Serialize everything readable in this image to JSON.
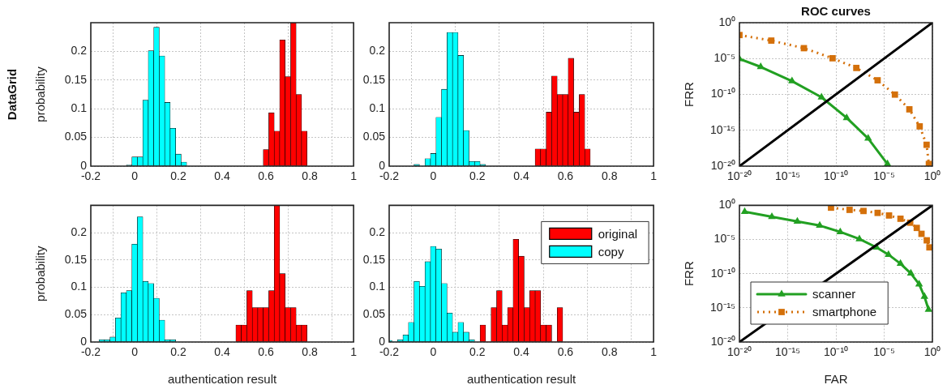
{
  "chart_data": [
    {
      "type": "histogram",
      "ylabel": "probability",
      "annotations": [
        "DataGrid"
      ],
      "xlim": [
        -0.2,
        1
      ],
      "xticks": [
        -0.2,
        0,
        0.2,
        0.4,
        0.6,
        0.8,
        1
      ],
      "ylim": [
        0,
        0.25
      ],
      "yticks": [
        0,
        0.05,
        0.1,
        0.15,
        0.2
      ],
      "grid": true,
      "bins": [
        -0.0375,
        -0.0125,
        0.0125,
        0.0375,
        0.0625,
        0.0875,
        0.1125,
        0.1375,
        0.1625,
        0.1875,
        0.2125,
        0.2375,
        0.2625,
        0.2875,
        0.3125,
        0.3375,
        0.3625,
        0.3875,
        0.4125,
        0.4375,
        0.4625,
        0.4875,
        0.5125,
        0.5375,
        0.5625,
        0.5875,
        0.6125,
        0.6375,
        0.6625,
        0.6875,
        0.7125,
        0.7375,
        0.7625,
        0.7875
      ],
      "series": [
        {
          "color": "#ff0000",
          "values": [
            null,
            null,
            null,
            null,
            null,
            null,
            null,
            null,
            null,
            null,
            null,
            null,
            null,
            null,
            null,
            null,
            null,
            null,
            null,
            null,
            null,
            null,
            null,
            null,
            null,
            0.029,
            0.093,
            0.061,
            0.22,
            0.156,
            0.25,
            0.125,
            0.061
          ]
        },
        {
          "color": "#00ffff",
          "values": [
            0.002,
            0.016,
            0.016,
            0.115,
            0.201,
            0.242,
            0.192,
            0.111,
            0.066,
            0.021,
            0.007,
            null,
            null,
            null,
            null,
            null,
            null,
            null,
            null,
            null,
            null,
            null,
            null,
            null,
            null,
            null,
            null,
            null,
            null,
            null,
            null,
            null,
            null
          ]
        }
      ]
    },
    {
      "type": "histogram",
      "xlim": [
        -0.2,
        1
      ],
      "xticks": [
        -0.2,
        0,
        0.2,
        0.4,
        0.6,
        0.8,
        1
      ],
      "ylim": [
        0,
        0.25
      ],
      "yticks": [
        0,
        0.05,
        0.1,
        0.15,
        0.2
      ],
      "grid": true,
      "bins": [
        -0.0875,
        -0.0625,
        -0.0375,
        -0.0125,
        0.0125,
        0.0375,
        0.0625,
        0.0875,
        0.1125,
        0.1375,
        0.1625,
        0.1875,
        0.2125,
        0.2375,
        0.2625,
        0.2875,
        0.3125,
        0.3375,
        0.3625,
        0.3875,
        0.4125,
        0.4375,
        0.4625,
        0.4875,
        0.5125,
        0.5375,
        0.5625,
        0.5875,
        0.6125,
        0.6375,
        0.6625,
        0.6875,
        0.7125
      ],
      "series": [
        {
          "color": "#ff0000",
          "values": [
            null,
            null,
            null,
            null,
            null,
            null,
            null,
            null,
            null,
            null,
            null,
            null,
            null,
            null,
            null,
            null,
            null,
            null,
            null,
            null,
            null,
            null,
            0.03,
            0.03,
            0.094,
            0.157,
            0.125,
            0.125,
            0.188,
            0.094,
            0.125,
            0.03
          ]
        },
        {
          "color": "#00ffff",
          "values": [
            0.003,
            0,
            0.013,
            0.022,
            0.085,
            0.134,
            0.233,
            0.233,
            0.193,
            0.062,
            0.008,
            0.008,
            0.003,
            null,
            null,
            null,
            null,
            null,
            null,
            null,
            null,
            null,
            null,
            null,
            null,
            null,
            null,
            null,
            null,
            null,
            null,
            null
          ]
        }
      ]
    },
    {
      "type": "line",
      "title": "ROC curves",
      "ylabel": "FRR",
      "log": "xy",
      "xlim": [
        1e-20,
        1
      ],
      "ylim": [
        1e-20,
        1
      ],
      "grid": true,
      "xticks": [
        {
          "value": 1e-20,
          "label": "10⁻²⁰"
        },
        {
          "value": 1e-15,
          "label": "10⁻¹⁵"
        },
        {
          "value": 1e-10,
          "label": "10⁻¹⁰"
        },
        {
          "value": 1e-05,
          "label": "10⁻⁵"
        },
        {
          "value": 1,
          "label": "10⁰"
        }
      ],
      "yticks": [
        {
          "value": 1e-20,
          "label": "10⁻²⁰"
        },
        {
          "value": 1e-15,
          "label": "10⁻¹⁵"
        },
        {
          "value": 1e-10,
          "label": "10⁻¹⁰"
        },
        {
          "value": 1e-05,
          "label": "10⁻⁵"
        },
        {
          "value": 1,
          "label": "10⁰"
        }
      ],
      "series": [
        {
          "color": "#000000",
          "marker": "none",
          "line_style": "solid",
          "x": [
            1e-20,
            1
          ],
          "values": [
            1e-20,
            1
          ]
        },
        {
          "color": "#22a022",
          "marker": "triangle",
          "line_style": "solid",
          "x": [
            1e-20,
            1.6e-18,
            2.8e-15,
            3.2e-12,
            1.3e-09,
            2.2e-07,
            2.2e-05
          ],
          "values": [
            8.9e-06,
            6.9e-07,
            7.1e-09,
            4e-11,
            5.4e-14,
            7.2e-17,
            2e-20
          ]
        },
        {
          "color": "#d4700a",
          "marker": "square",
          "line_style": "dotted",
          "x": [
            1e-20,
            2e-17,
            4.8e-14,
            4.5e-11,
            1.3e-08,
            2.1e-06,
            0.00013,
            0.0041,
            0.048,
            0.25,
            0.43
          ],
          "values": [
            0.019,
            0.0032,
            0.00028,
            1.1e-05,
            4.9e-07,
            9.3e-09,
            9.5e-11,
            8.3e-13,
            3.5e-15,
            9.5e-18,
            2e-20
          ]
        }
      ]
    },
    {
      "type": "histogram",
      "xlabel": "authentication result",
      "ylabel": "probability",
      "xlim": [
        -0.2,
        1
      ],
      "xticks": [
        -0.2,
        0,
        0.2,
        0.4,
        0.6,
        0.8,
        1
      ],
      "ylim": [
        0,
        0.25
      ],
      "yticks": [
        0,
        0.05,
        0.1,
        0.15,
        0.2
      ],
      "grid": true,
      "bins": [
        -0.1625,
        -0.1375,
        -0.1125,
        -0.0875,
        -0.0625,
        -0.0375,
        -0.0125,
        0.0125,
        0.0375,
        0.0625,
        0.0875,
        0.1125,
        0.1375,
        0.1625,
        0.1875,
        0.2125,
        0.2375,
        0.2625,
        0.2875,
        0.3125,
        0.3375,
        0.3625,
        0.3875,
        0.4125,
        0.4375,
        0.4625,
        0.4875,
        0.5125,
        0.5375,
        0.5625,
        0.5875,
        0.6125,
        0.6375,
        0.6625,
        0.6875,
        0.7125,
        0.7375,
        0.7625,
        0.7875
      ],
      "series": [
        {
          "color": "#ff0000",
          "values": [
            null,
            null,
            null,
            null,
            null,
            null,
            null,
            null,
            null,
            null,
            null,
            null,
            null,
            null,
            null,
            null,
            null,
            null,
            null,
            null,
            null,
            null,
            null,
            null,
            null,
            0.031,
            0.031,
            0.094,
            0.063,
            0.063,
            0.063,
            0.094,
            0.25,
            0.125,
            0.063,
            0.063,
            0.031,
            0.031
          ]
        },
        {
          "color": "#00ffff",
          "values": [
            0.004,
            0.004,
            0.009,
            0.044,
            0.09,
            0.094,
            0.179,
            0.229,
            0.111,
            0.107,
            0.08,
            0.04,
            0.004,
            0.004,
            null,
            null,
            null,
            null,
            null,
            null,
            null,
            null,
            null,
            null,
            null,
            null,
            null,
            null,
            null,
            null,
            null,
            null,
            null,
            null,
            null,
            null,
            null,
            null
          ]
        }
      ]
    },
    {
      "type": "histogram",
      "xlabel": "authentication result",
      "legend": "top right",
      "xlim": [
        -0.2,
        1
      ],
      "xticks": [
        -0.2,
        0,
        0.2,
        0.4,
        0.6,
        0.8,
        1
      ],
      "ylim": [
        0,
        0.25
      ],
      "yticks": [
        0,
        0.05,
        0.1,
        0.15,
        0.2
      ],
      "grid": true,
      "bins": [
        -0.2,
        -0.1875,
        -0.1625,
        -0.1375,
        -0.1125,
        -0.0875,
        -0.0625,
        -0.0375,
        -0.0125,
        0.0125,
        0.0375,
        0.0625,
        0.0875,
        0.1125,
        0.1375,
        0.1625,
        0.1875,
        0.2125,
        0.2375,
        0.2625,
        0.2875,
        0.3125,
        0.3375,
        0.3625,
        0.3875,
        0.4125,
        0.4375,
        0.4625,
        0.4875,
        0.5125,
        0.5375,
        0.5625,
        0.5875
      ],
      "series": [
        {
          "name": "original",
          "color": "#ff0000",
          "values": [
            null,
            null,
            null,
            null,
            null,
            null,
            null,
            null,
            null,
            null,
            null,
            null,
            null,
            null,
            null,
            null,
            null,
            0.031,
            0,
            0.063,
            0.094,
            0.031,
            0.063,
            0.188,
            0.157,
            0.063,
            0.094,
            0.094,
            0.031,
            0.031,
            0,
            0.063
          ]
        },
        {
          "name": "copy",
          "color": "#00ffff",
          "values": [
            0.003,
            0,
            0.004,
            0.013,
            0.036,
            0.111,
            0.102,
            0.147,
            0.175,
            0.17,
            0.107,
            0.053,
            0.018,
            0.036,
            0.018,
            0.004,
            null,
            null,
            null,
            null,
            null,
            null,
            null,
            null,
            null,
            null,
            null,
            null,
            null,
            null,
            null,
            null
          ]
        }
      ]
    },
    {
      "type": "line",
      "xlabel": "FAR",
      "ylabel": "FRR",
      "log": "xy",
      "legend": "bottom left",
      "xlim": [
        1e-20,
        1
      ],
      "ylim": [
        1e-20,
        1
      ],
      "grid": true,
      "xticks": [
        {
          "value": 1e-20,
          "label": "10⁻²⁰"
        },
        {
          "value": 1e-15,
          "label": "10⁻¹⁵"
        },
        {
          "value": 1e-10,
          "label": "10⁻¹⁰"
        },
        {
          "value": 1e-05,
          "label": "10⁻⁵"
        },
        {
          "value": 1,
          "label": "10⁰"
        }
      ],
      "yticks": [
        {
          "value": 1e-20,
          "label": "10⁻²⁰"
        },
        {
          "value": 1e-15,
          "label": "10⁻¹⁵"
        },
        {
          "value": 1e-10,
          "label": "10⁻¹⁰"
        },
        {
          "value": 1e-05,
          "label": "10⁻⁵"
        },
        {
          "value": 1,
          "label": "10⁰"
        }
      ],
      "series": [
        {
          "color": "#000000",
          "marker": "none",
          "line_style": "solid",
          "x": [
            1e-20,
            1
          ],
          "values": [
            1e-20,
            1
          ]
        },
        {
          "name": "scanner",
          "color": "#22a022",
          "marker": "triangle",
          "line_style": "solid",
          "x": [
            3.5e-20,
            2.3e-17,
            1e-14,
            2.1e-12,
            2.8e-10,
            2.7e-08,
            1.6e-06,
            2.8e-05,
            0.00049,
            0.0058,
            0.042,
            0.15,
            0.4
          ],
          "values": [
            0.12,
            0.021,
            0.0045,
            0.0011,
            0.00013,
            1.2e-05,
            7.1e-07,
            6.2e-08,
            2.9e-09,
            1.1e-10,
            2.9e-12,
            4.4e-14,
            5.5e-16
          ]
        },
        {
          "name": "smartphone",
          "color": "#d4700a",
          "marker": "square",
          "line_style": "dotted",
          "x": [
            3.1e-11,
            2.6e-09,
            7.2e-08,
            2.1e-06,
            3.2e-05,
            0.00049,
            0.005,
            0.024,
            0.074,
            0.26,
            0.49
          ],
          "values": [
            0.46,
            0.22,
            0.15,
            0.079,
            0.033,
            0.011,
            0.0029,
            0.0005,
            6.8e-05,
            7.6e-06,
            7.1e-07
          ]
        }
      ]
    }
  ]
}
